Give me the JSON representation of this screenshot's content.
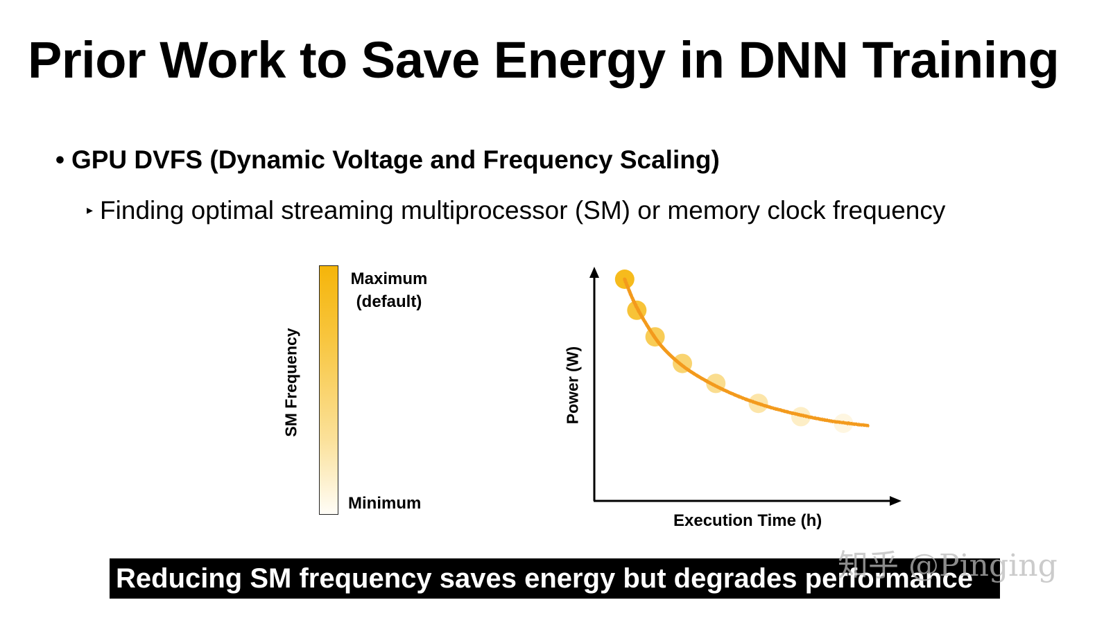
{
  "slide": {
    "title": "Prior Work to Save Energy in DNN Training",
    "bullet_1": "GPU DVFS (Dynamic Voltage and Frequency Scaling)",
    "bullet_2": "Finding optimal streaming multiprocessor (SM) or memory clock frequency",
    "caption": "Reducing SM frequency saves energy but degrades performance",
    "watermark": "知乎 @Pinging"
  },
  "frequency_scale": {
    "axis_label": "SM Frequency",
    "top_label_line1": "Maximum",
    "top_label_line2": "(default)",
    "bottom_label": "Minimum",
    "color_top": "#f5b50a",
    "color_bottom": "#fffdf7"
  },
  "colors": {
    "curve": "#f39a1e",
    "point": "#f5b50a"
  },
  "chart_data": {
    "type": "scatter",
    "xlabel": "Execution Time (h)",
    "ylabel": "Power (W)",
    "ticks_shown": false,
    "points": [
      {
        "x": 1.0,
        "y": 10.0
      },
      {
        "x": 1.4,
        "y": 8.6
      },
      {
        "x": 2.0,
        "y": 7.4
      },
      {
        "x": 2.9,
        "y": 6.2
      },
      {
        "x": 4.0,
        "y": 5.3
      },
      {
        "x": 5.4,
        "y": 4.4
      },
      {
        "x": 6.8,
        "y": 3.8
      },
      {
        "x": 8.2,
        "y": 3.5
      }
    ],
    "trend_curve": [
      {
        "x": 1.0,
        "y": 10.0
      },
      {
        "x": 1.3,
        "y": 9.0
      },
      {
        "x": 1.7,
        "y": 8.0
      },
      {
        "x": 2.2,
        "y": 7.0
      },
      {
        "x": 2.9,
        "y": 6.1
      },
      {
        "x": 3.7,
        "y": 5.4
      },
      {
        "x": 4.6,
        "y": 4.8
      },
      {
        "x": 5.6,
        "y": 4.3
      },
      {
        "x": 6.7,
        "y": 3.9
      },
      {
        "x": 7.8,
        "y": 3.6
      },
      {
        "x": 9.0,
        "y": 3.4
      }
    ],
    "xlim": [
      0,
      10.5
    ],
    "ylim": [
      0,
      11
    ]
  }
}
